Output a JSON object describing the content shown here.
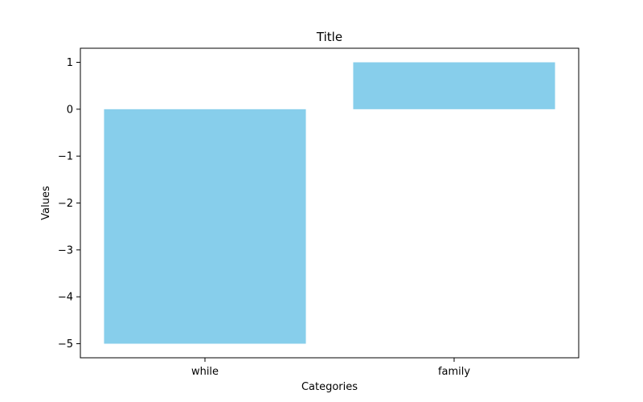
{
  "chart_data": {
    "type": "bar",
    "title": "Title",
    "xlabel": "Categories",
    "ylabel": "Values",
    "categories": [
      "while",
      "family"
    ],
    "values": [
      -5,
      1
    ],
    "ylim": [
      -5.3,
      1.3
    ],
    "yticks": [
      1,
      0,
      -1,
      -2,
      -3,
      -4,
      -5
    ],
    "ytick_labels": [
      "1",
      "0",
      "−1",
      "−2",
      "−3",
      "−4",
      "−5"
    ],
    "bar_color": "#87CEEB",
    "grid": false,
    "legend": "none"
  }
}
